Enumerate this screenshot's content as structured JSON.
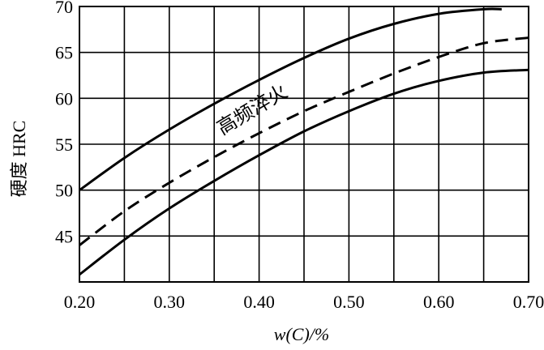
{
  "chart_data": {
    "type": "line",
    "title": "",
    "xlabel": "w(C)/%",
    "ylabel": "硬度 HRC",
    "xlim": [
      0.2,
      0.7
    ],
    "ylim": [
      40,
      70
    ],
    "x_ticks": [
      0.2,
      0.25,
      0.3,
      0.35,
      0.4,
      0.45,
      0.5,
      0.55,
      0.6,
      0.65,
      0.7
    ],
    "x_tick_labels": [
      "0.20",
      "0.30",
      "0.40",
      "0.50",
      "0.60",
      "0.70"
    ],
    "x_tick_label_values": [
      0.2,
      0.3,
      0.4,
      0.5,
      0.6,
      0.7
    ],
    "y_ticks": [
      40,
      45,
      50,
      55,
      60,
      65,
      70
    ],
    "y_tick_labels": [
      "45",
      "50",
      "55",
      "60",
      "65",
      "70"
    ],
    "y_tick_label_values": [
      45,
      50,
      55,
      60,
      65,
      70
    ],
    "grid": true,
    "annotation": "高频淬火",
    "series": [
      {
        "style": "solid",
        "x": [
          0.2,
          0.25,
          0.3,
          0.35,
          0.4,
          0.45,
          0.5,
          0.55,
          0.6,
          0.65,
          0.67
        ],
        "y": [
          50,
          53.5,
          56.6,
          59.4,
          62.0,
          64.4,
          66.5,
          68.1,
          69.2,
          69.7,
          69.7
        ]
      },
      {
        "style": "dashed",
        "x": [
          0.2,
          0.25,
          0.3,
          0.35,
          0.4,
          0.45,
          0.5,
          0.55,
          0.6,
          0.65,
          0.7
        ],
        "y": [
          44,
          47.7,
          50.8,
          53.6,
          56.2,
          58.6,
          60.7,
          62.7,
          64.5,
          66.0,
          66.6
        ]
      },
      {
        "style": "solid",
        "x": [
          0.2,
          0.25,
          0.3,
          0.35,
          0.4,
          0.45,
          0.5,
          0.55,
          0.6,
          0.65,
          0.7
        ],
        "y": [
          40.8,
          44.6,
          48.0,
          51.0,
          53.8,
          56.4,
          58.6,
          60.5,
          61.9,
          62.8,
          63.1
        ]
      }
    ]
  }
}
